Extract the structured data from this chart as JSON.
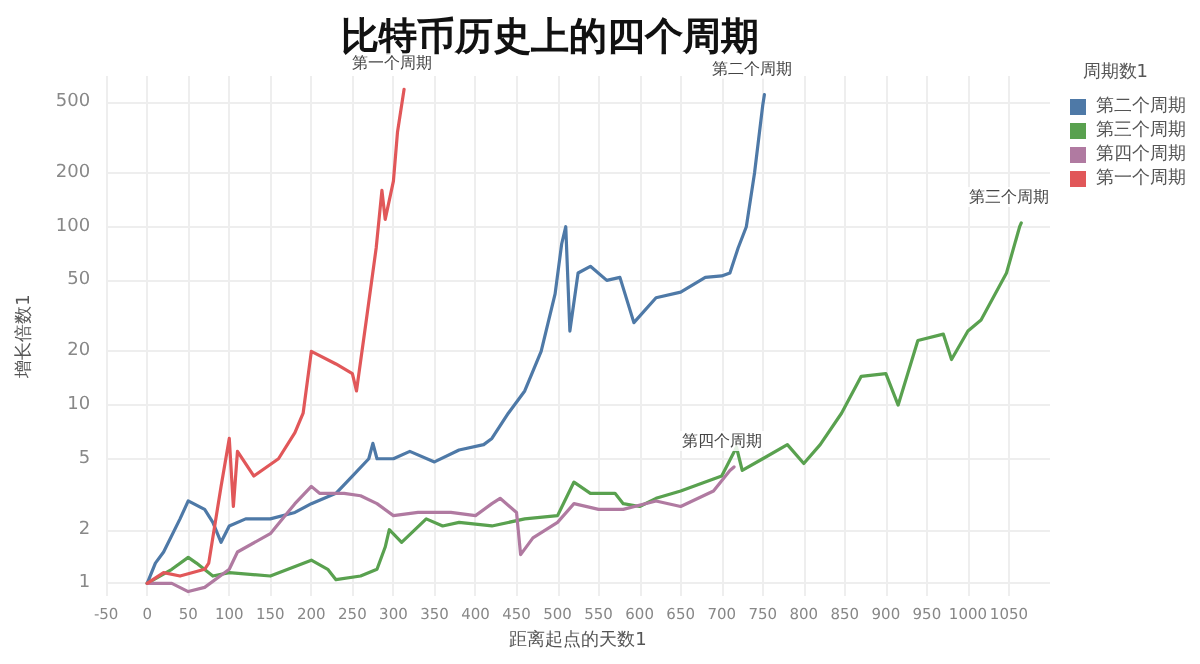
{
  "chart_data": {
    "type": "line",
    "title": "比特币历史上的四个周期",
    "xlabel": "距离起点的天数1",
    "ylabel": "增长倍数1",
    "legend_title": "周期数1",
    "log": "y",
    "grid": true,
    "legend": "top right",
    "marker": "none",
    "line_style": "solid",
    "xlim": [
      -50,
      1100
    ],
    "xticks": [
      -50,
      0,
      50,
      100,
      150,
      200,
      250,
      300,
      350,
      400,
      450,
      500,
      550,
      600,
      650,
      700,
      750,
      800,
      850,
      900,
      950,
      1000,
      1050
    ],
    "ylim": [
      0.85,
      700
    ],
    "yticks": [
      1,
      2,
      5,
      10,
      20,
      50,
      100,
      200,
      500
    ],
    "series": [
      {
        "name": "第二个周期",
        "color": "#4e79a7",
        "x": [
          0,
          10,
          20,
          40,
          50,
          70,
          80,
          90,
          100,
          120,
          150,
          180,
          200,
          230,
          250,
          270,
          275,
          280,
          300,
          320,
          350,
          380,
          410,
          420,
          440,
          460,
          480,
          497,
          505,
          510,
          515,
          525,
          540,
          560,
          576,
          593,
          620,
          650,
          680,
          700,
          710,
          720,
          730,
          740,
          750,
          752
        ],
        "values": [
          1,
          1.3,
          1.5,
          2.3,
          2.9,
          2.6,
          2.2,
          1.7,
          2.1,
          2.3,
          2.3,
          2.5,
          2.8,
          3.2,
          4,
          5,
          6.1,
          5,
          5,
          5.5,
          4.8,
          5.6,
          6,
          6.5,
          9,
          12,
          20,
          42,
          80,
          100,
          26,
          55,
          60,
          50,
          52,
          29,
          40,
          43,
          52,
          53,
          55,
          76,
          100,
          200,
          480,
          550
        ]
      },
      {
        "name": "第三个周期",
        "color": "#59a14f",
        "x": [
          0,
          30,
          50,
          60,
          80,
          100,
          150,
          200,
          220,
          230,
          260,
          280,
          290,
          295,
          310,
          340,
          360,
          380,
          420,
          460,
          500,
          520,
          540,
          570,
          580,
          600,
          620,
          650,
          700,
          718,
          725,
          750,
          780,
          800,
          820,
          846,
          870,
          900,
          915,
          939,
          970,
          980,
          1000,
          1016,
          1047,
          1063,
          1065
        ],
        "values": [
          1,
          1.2,
          1.4,
          1.3,
          1.1,
          1.15,
          1.1,
          1.35,
          1.2,
          1.05,
          1.1,
          1.2,
          1.6,
          2,
          1.7,
          2.3,
          2.1,
          2.2,
          2.1,
          2.3,
          2.4,
          3.7,
          3.2,
          3.2,
          2.8,
          2.7,
          3,
          3.3,
          4,
          5.8,
          4.3,
          5,
          6,
          4.7,
          6,
          9,
          14.5,
          15,
          10,
          23,
          25,
          18,
          26,
          30,
          55,
          100,
          105
        ]
      },
      {
        "name": "第四个周期",
        "color": "#b07aa1",
        "x": [
          0,
          30,
          50,
          70,
          100,
          110,
          150,
          180,
          200,
          210,
          240,
          260,
          280,
          300,
          330,
          370,
          400,
          420,
          430,
          450,
          455,
          470,
          500,
          520,
          550,
          580,
          620,
          650,
          690,
          710,
          715
        ],
        "values": [
          1,
          1,
          0.9,
          0.95,
          1.2,
          1.5,
          1.9,
          2.8,
          3.5,
          3.2,
          3.2,
          3.1,
          2.8,
          2.4,
          2.5,
          2.5,
          2.4,
          2.8,
          3,
          2.5,
          1.45,
          1.8,
          2.2,
          2.8,
          2.6,
          2.6,
          2.9,
          2.7,
          3.3,
          4.3,
          4.5
        ]
      },
      {
        "name": "第一个周期",
        "color": "#e15759",
        "x": [
          0,
          20,
          40,
          70,
          75,
          90,
          100,
          105,
          110,
          130,
          160,
          180,
          190,
          200,
          230,
          250,
          255,
          267,
          279,
          286,
          290,
          300,
          305,
          313
        ],
        "values": [
          1,
          1.15,
          1.1,
          1.2,
          1.3,
          3.5,
          6.5,
          2.7,
          5.5,
          4,
          5,
          7,
          9,
          20,
          17,
          15,
          12,
          30,
          76,
          160,
          110,
          180,
          340,
          590
        ]
      }
    ],
    "annotations": [
      {
        "text": "第一个周期",
        "x": 313,
        "y": 590
      },
      {
        "text": "第二个周期",
        "x": 752,
        "y": 550
      },
      {
        "text": "第三个周期",
        "x": 1065,
        "y": 105
      },
      {
        "text": "第四个周期",
        "x": 715,
        "y": 4.5
      }
    ]
  }
}
